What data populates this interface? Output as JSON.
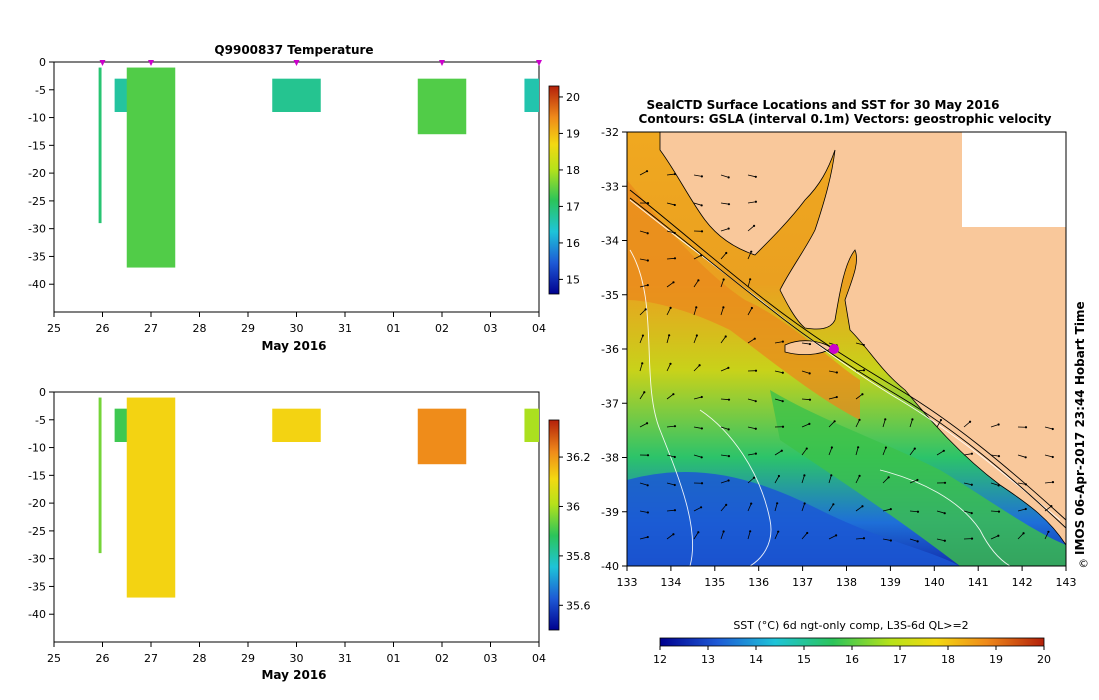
{
  "top_title": "Q9900837  Temperature",
  "xaxis_label": "May 2016",
  "x_tick_labels": [
    "25",
    "26",
    "27",
    "28",
    "29",
    "30",
    "31",
    "01",
    "02",
    "03",
    "04"
  ],
  "y_tick_labels": [
    "0",
    "-5",
    "-10",
    "-15",
    "-20",
    "-25",
    "-30",
    "-35",
    "-40"
  ],
  "top_colorbar_ticks": [
    "20",
    "19",
    "18",
    "17",
    "16",
    "15"
  ],
  "bottom_colorbar_ticks": [
    "36.2",
    "36",
    "35.8",
    "35.6"
  ],
  "map_title_1": "SealCTD Surface Locations and SST for 30 May 2016",
  "map_title_2": "Contours: GSLA (interval 0.1m) Vectors: geostrophic velocity",
  "map_lat_labels": [
    "-32",
    "-33",
    "-34",
    "-35",
    "-36",
    "-37",
    "-38",
    "-39",
    "-40"
  ],
  "map_lon_labels": [
    "133",
    "134",
    "135",
    "136",
    "137",
    "138",
    "139",
    "140",
    "141",
    "142",
    "143"
  ],
  "map_side_text": "IMOS 06-Apr-2017 23:44 Hobart Time",
  "copyright_symbol": "©",
  "sst_bar_title": "SST (°C) 6d ngt-only comp, L3S-6d QL>=2",
  "sst_bar_ticks": [
    "12",
    "13",
    "14",
    "15",
    "16",
    "17",
    "18",
    "19",
    "20"
  ],
  "colors": {
    "land": "#f9c89b",
    "profile_marker": "#cc00cc"
  },
  "chart_data": [
    {
      "type": "heatmap",
      "title": "Q9900837  Temperature",
      "xlabel": "May 2016",
      "ylabel": "",
      "xlim_days": [
        25,
        35
      ],
      "ylim": [
        -45,
        0
      ],
      "colorbar_range": [
        14.6,
        20.3
      ],
      "profiles": [
        {
          "day": 25.95,
          "depth_top": -1,
          "depth_bottom": -29,
          "value": 17.0
        },
        {
          "day": 26.3,
          "depth_top": -3,
          "depth_bottom": -9,
          "value": 16.7
        },
        {
          "day": 27.0,
          "depth_top": -1,
          "depth_bottom": -37,
          "value": 17.4
        },
        {
          "day": 30.0,
          "depth_top": -3,
          "depth_bottom": -9,
          "value": 16.8
        },
        {
          "day": 33.0,
          "depth_top": -3,
          "depth_bottom": -13,
          "value": 17.4
        },
        {
          "day": 35.0,
          "depth_top": -3,
          "depth_bottom": -9,
          "value": 16.6
        }
      ],
      "profile_time_markers_days": [
        26.0,
        27.0,
        30.0,
        33.0,
        35.0
      ]
    },
    {
      "type": "heatmap",
      "title": "",
      "xlabel": "May 2016",
      "ylabel": "",
      "xlim_days": [
        25,
        35
      ],
      "ylim": [
        -45,
        0
      ],
      "colorbar_range": [
        35.5,
        36.35
      ],
      "profiles": [
        {
          "day": 25.95,
          "depth_top": -1,
          "depth_bottom": -29,
          "value": 35.95
        },
        {
          "day": 26.3,
          "depth_top": -3,
          "depth_bottom": -9,
          "value": 35.9
        },
        {
          "day": 27.0,
          "depth_top": -1,
          "depth_bottom": -37,
          "value": 36.12
        },
        {
          "day": 30.0,
          "depth_top": -3,
          "depth_bottom": -9,
          "value": 36.12
        },
        {
          "day": 33.0,
          "depth_top": -3,
          "depth_bottom": -13,
          "value": 36.22
        },
        {
          "day": 35.0,
          "depth_top": -3,
          "depth_bottom": -9,
          "value": 36.0
        }
      ]
    },
    {
      "type": "heatmap",
      "title": "SealCTD Surface Locations and SST for 30 May 2016",
      "subtitle": "Contours: GSLA (interval 0.1m) Vectors: geostrophic velocity",
      "xlim": [
        133,
        143
      ],
      "ylim": [
        -40,
        -32
      ],
      "colorbar_label": "SST (°C) 6d ngt-only comp, L3S-6d QL>=2",
      "colorbar_range": [
        12,
        20
      ],
      "seal_positions": [
        {
          "lon": 137.6,
          "lat": -35.95
        }
      ]
    }
  ]
}
